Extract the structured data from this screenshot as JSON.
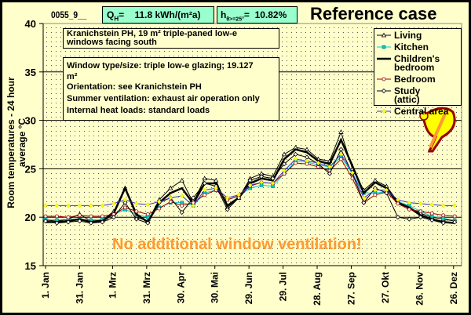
{
  "header": {
    "case_id": "0055_9__",
    "qh_label": "Q",
    "qh_sub": "H",
    "qh_value": "=    11.8 kWh/(m²a)",
    "h_label": "h",
    "h_sub": "θ>=25°",
    "h_value": "=  10.82%",
    "title": "Reference case"
  },
  "notes": {
    "heading_line1": "Kranichstein PH, 19 m² triple-paned low-e",
    "heading_line2": "windows facing south",
    "details": [
      "Window type/size: triple low-e glazing; 19.127",
      "m²",
      "Orientation: see Kranichstein PH",
      "Summer ventilation: exhaust air operation only",
      "Internal heat loads: standard loads"
    ]
  },
  "banner": "No additional window ventilation!",
  "colors": {
    "background": "#FFFFCC",
    "header_box": "#99FFCC",
    "banner": "#FF9933"
  },
  "chart_data": {
    "type": "line",
    "title": "Reference case",
    "xlabel": "",
    "ylabel": "Room temperatures - 24 hour average °C",
    "ylim": [
      15,
      40
    ],
    "yticks": [
      15,
      20,
      25,
      30,
      35,
      40
    ],
    "xlim_days": [
      0,
      364
    ],
    "xticks": [
      {
        "day": 0,
        "label": "1. Jan"
      },
      {
        "day": 30,
        "label": "31. Jan"
      },
      {
        "day": 59,
        "label": "1. Mrz"
      },
      {
        "day": 89,
        "label": "31. Mrz"
      },
      {
        "day": 119,
        "label": "30. Apr"
      },
      {
        "day": 149,
        "label": "30. Mai"
      },
      {
        "day": 179,
        "label": "29. Jun"
      },
      {
        "day": 209,
        "label": "29. Jul"
      },
      {
        "day": 239,
        "label": "28. Aug"
      },
      {
        "day": 269,
        "label": "27. Sep"
      },
      {
        "day": 299,
        "label": "27. Okt"
      },
      {
        "day": 329,
        "label": "26. Nov"
      },
      {
        "day": 359,
        "label": "26. Dez"
      }
    ],
    "grid": "horizontal",
    "legend_position": "top-right",
    "x_step_days": 10,
    "series": [
      {
        "name": "Living",
        "label_lines": [
          "Living"
        ],
        "color": "#000000",
        "marker": "triangle",
        "width": 1,
        "values": [
          19.7,
          19.6,
          19.8,
          20.3,
          19.6,
          19.7,
          20.6,
          23.0,
          20.0,
          19.6,
          21.8,
          23.0,
          23.8,
          21.5,
          24.0,
          23.8,
          21.0,
          22.0,
          24.0,
          24.5,
          24.2,
          26.5,
          27.2,
          27.0,
          26.0,
          25.8,
          28.8,
          25.0,
          22.8,
          23.8,
          23.2,
          21.6,
          21.0,
          20.4,
          20.0,
          19.8,
          19.6
        ]
      },
      {
        "name": "Kitchen",
        "label_lines": [
          "Kitchen"
        ],
        "color": "#00CCCC",
        "marker": "square",
        "width": 1,
        "values": [
          19.8,
          19.7,
          19.8,
          19.8,
          19.7,
          19.8,
          20.3,
          20.8,
          20.3,
          20.0,
          21.0,
          21.5,
          21.5,
          21.2,
          22.5,
          22.8,
          21.8,
          22.2,
          23.0,
          23.3,
          23.2,
          24.5,
          25.8,
          25.7,
          25.4,
          25.2,
          26.2,
          24.5,
          22.5,
          22.5,
          22.6,
          21.6,
          21.2,
          20.6,
          20.1,
          19.9,
          19.7
        ]
      },
      {
        "name": "Children's bedroom",
        "label_lines": [
          "Children's",
          "bedroom"
        ],
        "color": "#000000",
        "marker": "none",
        "width": 2.5,
        "values": [
          19.5,
          19.5,
          19.6,
          19.8,
          19.5,
          19.6,
          20.4,
          23.0,
          20.3,
          19.5,
          21.5,
          22.5,
          23.0,
          21.4,
          23.5,
          23.5,
          21.2,
          22.0,
          23.5,
          24.0,
          23.8,
          26.0,
          27.0,
          26.7,
          25.8,
          25.5,
          28.0,
          25.3,
          22.5,
          23.6,
          23.0,
          21.5,
          21.0,
          20.2,
          19.8,
          19.5,
          19.4
        ]
      },
      {
        "name": "Bedroom",
        "label_lines": [
          "Bedroom"
        ],
        "color": "#990000",
        "marker": "circle",
        "width": 1,
        "values": [
          20.1,
          20.1,
          20.0,
          20.2,
          20.1,
          20.1,
          20.3,
          21.0,
          20.6,
          20.3,
          20.9,
          21.6,
          21.2,
          21.5,
          22.3,
          22.8,
          21.8,
          22.2,
          23.2,
          23.6,
          23.5,
          24.5,
          25.6,
          25.5,
          25.2,
          24.8,
          26.0,
          24.0,
          21.5,
          22.3,
          22.6,
          21.4,
          20.8,
          20.6,
          20.4,
          20.2,
          20.1
        ]
      },
      {
        "name": "Study (attic)",
        "label_lines": [
          "Study",
          "(attic)"
        ],
        "color": "#000000",
        "marker": "diamond",
        "width": 1,
        "values": [
          19.6,
          19.4,
          19.5,
          19.6,
          19.4,
          19.5,
          20.0,
          21.5,
          19.8,
          19.4,
          21.5,
          22.0,
          20.5,
          22.0,
          23.5,
          23.2,
          20.8,
          22.0,
          23.8,
          24.2,
          24.0,
          25.5,
          26.5,
          26.2,
          25.5,
          24.5,
          27.0,
          24.5,
          21.5,
          23.0,
          22.5,
          20.0,
          19.8,
          20.0,
          19.7,
          19.4,
          19.5
        ]
      },
      {
        "name": "Central area",
        "label_lines": [
          "Central area"
        ],
        "color": "#3333CC",
        "marker": "yellow-diamond",
        "width": 1,
        "values": [
          21.2,
          21.2,
          21.2,
          21.2,
          21.2,
          21.2,
          21.4,
          21.8,
          21.4,
          21.3,
          21.6,
          22.0,
          22.2,
          21.2,
          22.8,
          23.0,
          22.0,
          22.3,
          23.3,
          23.6,
          23.5,
          24.8,
          26.0,
          25.8,
          25.6,
          25.2,
          26.5,
          24.6,
          22.0,
          22.8,
          22.8,
          21.8,
          21.5,
          21.4,
          21.3,
          21.2,
          21.2
        ]
      }
    ]
  }
}
